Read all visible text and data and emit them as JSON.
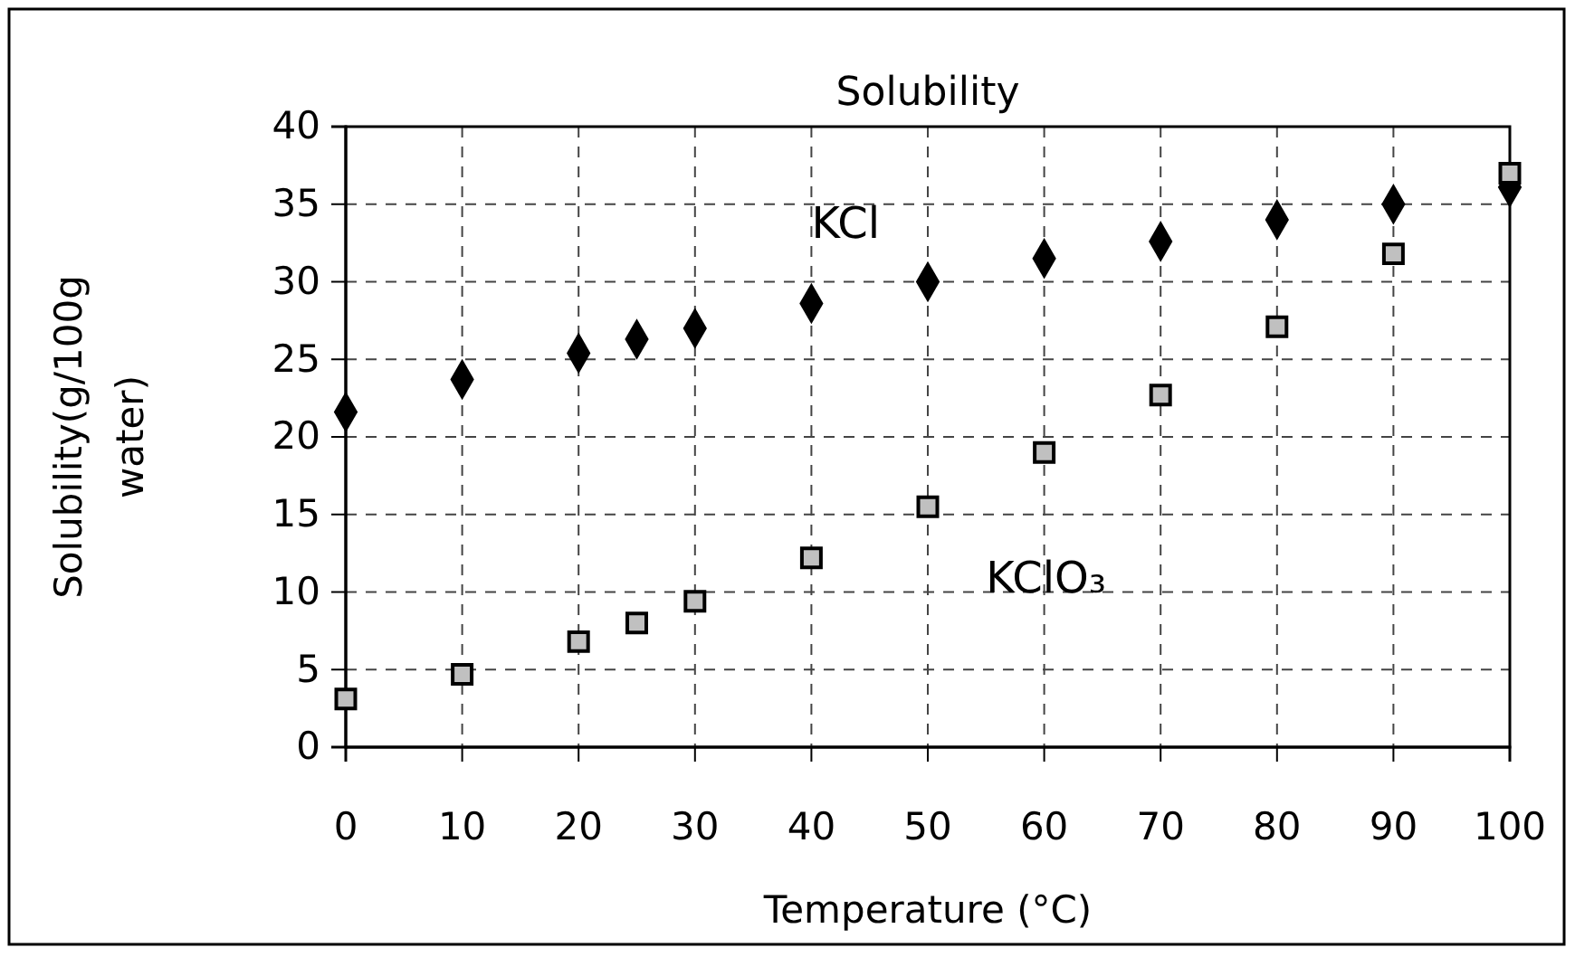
{
  "chart_data": {
    "type": "scatter",
    "title": "Solubility",
    "xlabel": "Temperature (°C)",
    "ylabel": "Solubility(g/100g water)",
    "x": [
      0,
      10,
      20,
      25,
      30,
      40,
      50,
      60,
      70,
      80,
      90,
      100
    ],
    "series": [
      {
        "name": "KCl",
        "color": "#000000",
        "marker": "diamond",
        "values": [
          21.6,
          23.7,
          25.4,
          26.3,
          27.0,
          28.6,
          30.0,
          31.5,
          32.6,
          34.0,
          35.0,
          36.1
        ]
      },
      {
        "name": "KClO₃",
        "color": "#c0c0c0",
        "marker": "square",
        "values": [
          3.1,
          4.7,
          6.8,
          8.0,
          9.4,
          12.2,
          15.5,
          19.0,
          22.7,
          27.1,
          31.8,
          37.0
        ]
      }
    ],
    "xlim": [
      0,
      100
    ],
    "xticks": [
      0,
      10,
      20,
      30,
      40,
      50,
      60,
      70,
      80,
      90,
      100
    ],
    "ylim": [
      0,
      40
    ],
    "yticks": [
      0,
      5,
      10,
      15,
      20,
      25,
      30,
      35,
      40
    ],
    "grid": true
  }
}
